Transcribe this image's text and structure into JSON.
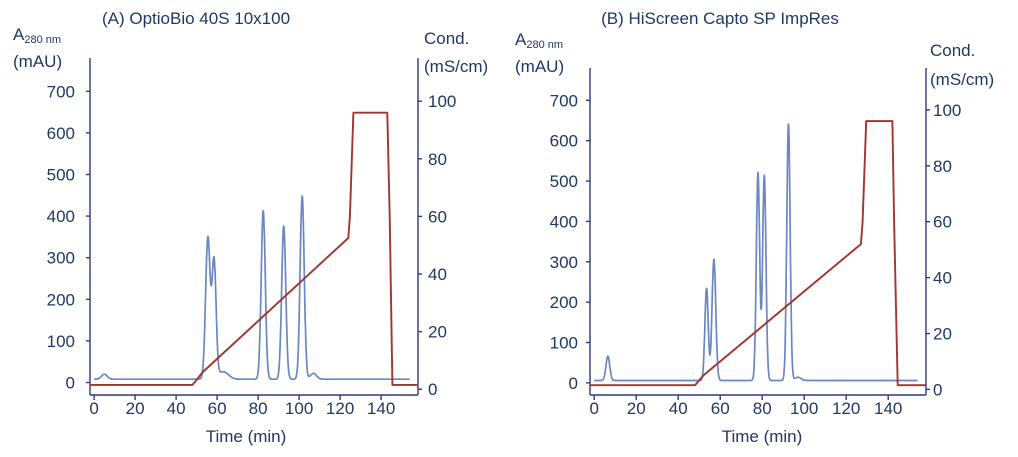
{
  "chart_data": [
    {
      "type": "line",
      "title": "(A) OptioBio 40S 10x100",
      "xlabel": "Time (min)",
      "ylabel_main": "A",
      "ylabel_sub": "280 nm",
      "ylabel_units": "(mAU)",
      "y2label_line1": "Cond.",
      "y2label_line2": "(mS/cm)",
      "xlim": [
        -2,
        158
      ],
      "ylim": [
        -30,
        780
      ],
      "y2lim": [
        -2,
        115
      ],
      "xticks": [
        0,
        20,
        40,
        60,
        80,
        100,
        120,
        140
      ],
      "xticklabels": [
        "0",
        "20",
        "40",
        "60",
        "80",
        "100",
        "120",
        "140"
      ],
      "yticks": [
        0,
        100,
        200,
        300,
        400,
        500,
        600,
        700
      ],
      "yticklabels": [
        "0",
        "100",
        "200",
        "300",
        "400",
        "500",
        "600",
        "700"
      ],
      "y2ticks": [
        0,
        20,
        40,
        60,
        80,
        100
      ],
      "y2ticklabels": [
        "0",
        "20",
        "40",
        "60",
        "80",
        "100"
      ],
      "colors": {
        "absorbance": "#6a86c3",
        "conductivity": "#a0352d",
        "axes": "#2e3b7a",
        "text": "#1f3864"
      },
      "series": [
        {
          "name": "A280",
          "axis": "left",
          "baseline": 8,
          "x_range": [
            0,
            154
          ],
          "peaks": [
            {
              "center": 5,
              "height": 12,
              "width": 1.4
            },
            {
              "center": 55.5,
              "height": 340,
              "width": 1.1
            },
            {
              "center": 58.5,
              "height": 282,
              "width": 1.0
            },
            {
              "center": 63,
              "height": 18,
              "width": 2.5
            },
            {
              "center": 82.5,
              "height": 405,
              "width": 1.0
            },
            {
              "center": 92.5,
              "height": 368,
              "width": 1.0
            },
            {
              "center": 101.5,
              "height": 440,
              "width": 1.0
            },
            {
              "center": 107,
              "height": 14,
              "width": 1.5
            }
          ]
        },
        {
          "name": "Conductivity",
          "axis": "right",
          "x": [
            -2,
            48,
            53,
            124,
            124.8,
            126.5,
            143,
            144.2,
            145.5,
            158
          ],
          "y": [
            1.5,
            1.5,
            6,
            52.5,
            60,
            96,
            96,
            60,
            1.5,
            1.5
          ]
        }
      ]
    },
    {
      "type": "line",
      "title": "(B) HiScreen Capto SP ImpRes",
      "xlabel": "Time (min)",
      "ylabel_main": "A",
      "ylabel_sub": "280 nm",
      "ylabel_units": "(mAU)",
      "y2label_line1": "Cond.",
      "y2label_line2": "(mS/cm)",
      "xlim": [
        -2,
        158
      ],
      "ylim": [
        -30,
        780
      ],
      "y2lim": [
        -2,
        115
      ],
      "xticks": [
        0,
        20,
        40,
        60,
        80,
        100,
        120,
        140
      ],
      "xticklabels": [
        "0",
        "20",
        "40",
        "60",
        "80",
        "100",
        "120",
        "140"
      ],
      "yticks": [
        0,
        100,
        200,
        300,
        400,
        500,
        600,
        700
      ],
      "yticklabels": [
        "0",
        "100",
        "200",
        "300",
        "400",
        "500",
        "600",
        "700"
      ],
      "y2ticks": [
        0,
        20,
        40,
        60,
        80,
        100
      ],
      "y2ticklabels": [
        "0",
        "20",
        "40",
        "60",
        "80",
        "100"
      ],
      "colors": {
        "absorbance": "#6a86c3",
        "conductivity": "#a0352d",
        "axes": "#2e3b7a",
        "text": "#1f3864"
      },
      "series": [
        {
          "name": "A280",
          "axis": "left",
          "baseline": 6,
          "x_range": [
            0,
            154
          ],
          "peaks": [
            {
              "center": 6.5,
              "height": 60,
              "width": 0.9
            },
            {
              "center": 53.5,
              "height": 228,
              "width": 0.8
            },
            {
              "center": 57,
              "height": 300,
              "width": 0.9
            },
            {
              "center": 78,
              "height": 515,
              "width": 0.8
            },
            {
              "center": 81,
              "height": 508,
              "width": 0.8
            },
            {
              "center": 92.5,
              "height": 635,
              "width": 0.8
            },
            {
              "center": 97,
              "height": 8,
              "width": 1.5
            }
          ]
        },
        {
          "name": "Conductivity",
          "axis": "right",
          "x": [
            -2,
            48,
            52,
            127,
            127.8,
            129.5,
            142,
            142.8,
            144.5,
            158
          ],
          "y": [
            1.5,
            1.5,
            5,
            52,
            60,
            96,
            96,
            60,
            1.5,
            1.5
          ]
        }
      ]
    }
  ]
}
